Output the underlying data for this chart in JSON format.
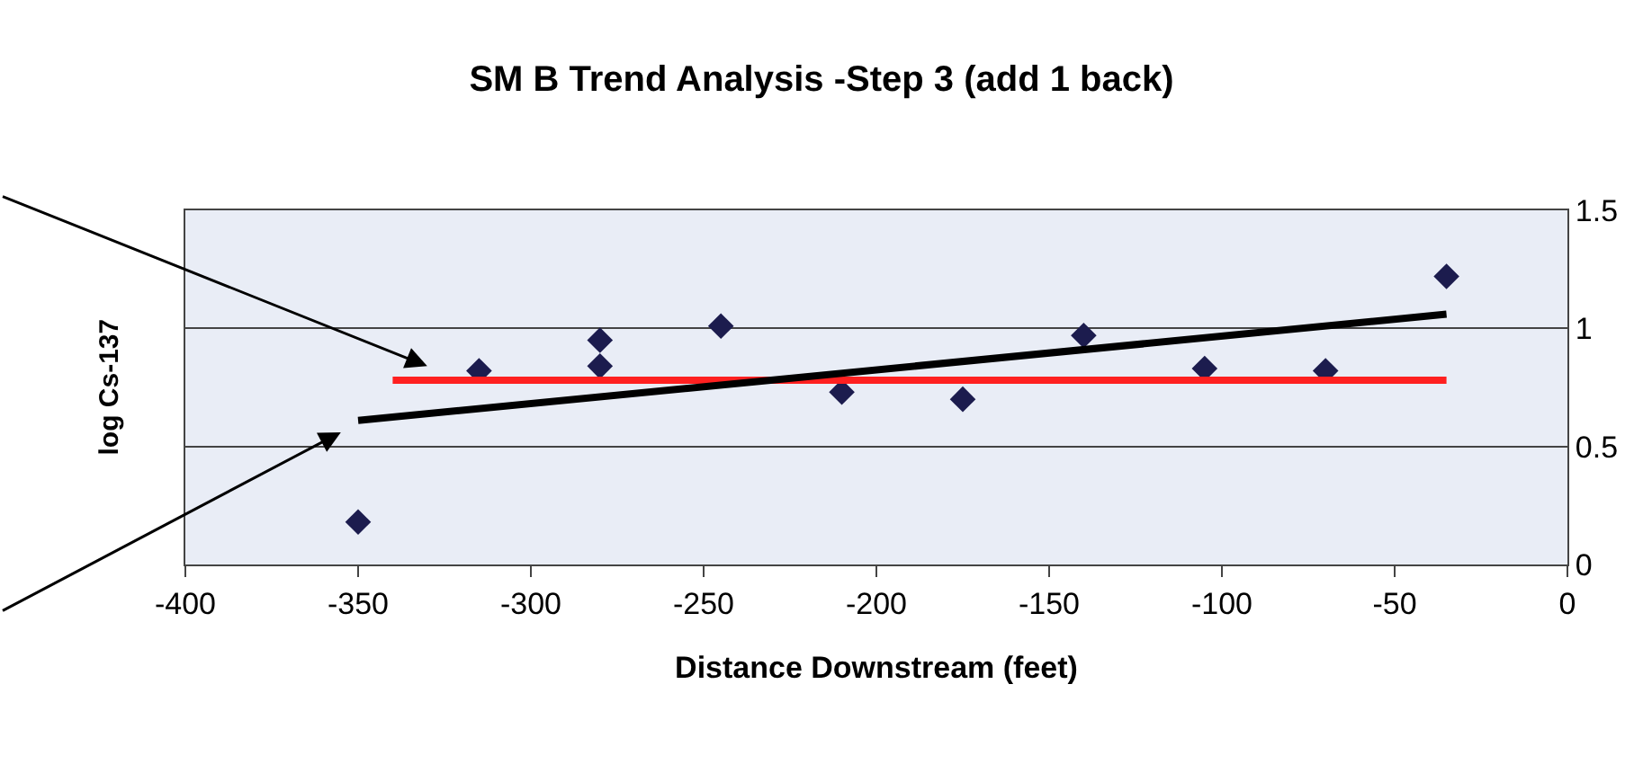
{
  "chart_data": {
    "type": "scatter",
    "title": "SM B Trend Analysis -Step 3 (add 1 back)",
    "xlabel": "Distance Downstream (feet)",
    "ylabel": "log Cs-137",
    "xlim": [
      -400,
      0
    ],
    "xticks": [
      -400,
      -350,
      -300,
      -250,
      -200,
      -150,
      -100,
      -50,
      0
    ],
    "ylim": [
      0,
      1.5
    ],
    "yticks": [
      0,
      0.5,
      1,
      1.5
    ],
    "grid": "y",
    "marker": "diamond",
    "series": [
      {
        "color": "#1c1c4e",
        "x": [
          -350,
          -315,
          -280,
          -280,
          -245,
          -210,
          -175,
          -140,
          -105,
          -70,
          -35
        ],
        "values": [
          0.18,
          0.82,
          0.95,
          0.84,
          1.01,
          0.73,
          0.7,
          0.97,
          0.83,
          0.82,
          1.22
        ]
      },
      {
        "type": "line",
        "marker": "none",
        "color": "#ff2020",
        "x": [
          -340,
          -35
        ],
        "values": [
          0.78,
          0.78
        ]
      },
      {
        "type": "line",
        "marker": "none",
        "color": "#000000",
        "x": [
          -350,
          -35
        ],
        "values": [
          0.61,
          1.06
        ]
      }
    ]
  }
}
